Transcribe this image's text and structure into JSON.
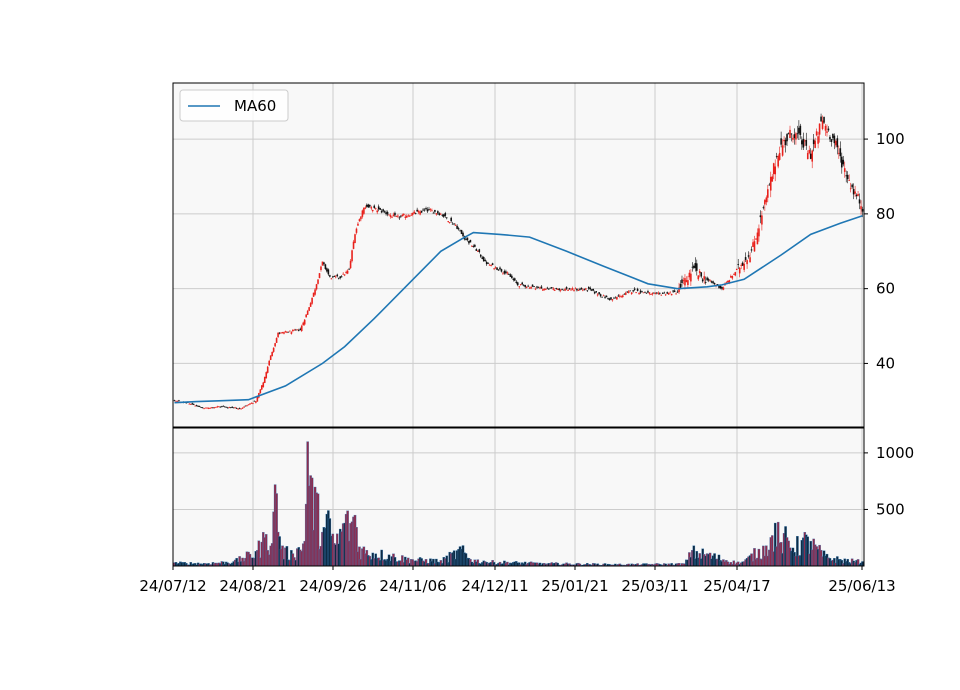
{
  "chart_data": {
    "type": "candlestick",
    "grid": true,
    "legend": {
      "position": "top-left",
      "entries": [
        "MA60"
      ]
    },
    "colors": {
      "up": "#e8211c",
      "down": "#111111",
      "ma60": "#1f77b4",
      "vol_up": "#8b2c4f",
      "vol_down": "#0d2b45",
      "vol_edge": "#3b7fb8",
      "panel_bg": "#f8f8f8",
      "grid": "#cccccc"
    },
    "x_tick_labels": [
      "24/07/12",
      "24/08/21",
      "24/09/26",
      "24/11/06",
      "24/12/11",
      "25/01/21",
      "25/03/11",
      "25/04/17",
      "25/06/13"
    ],
    "price_panel": {
      "ylim": [
        23,
        115
      ],
      "yticks": [
        40,
        60,
        80,
        100
      ],
      "series": [
        {
          "name": "MA60",
          "type": "line",
          "points": [
            [
              0,
              29.5
            ],
            [
              15,
              29.8
            ],
            [
              30,
              30
            ],
            [
              50,
              30.3
            ],
            [
              75,
              34
            ],
            [
              100,
              40
            ],
            [
              115,
              44.5
            ],
            [
              135,
              52
            ],
            [
              160,
              62
            ],
            [
              180,
              70
            ],
            [
              195,
              73.5
            ],
            [
              202,
              75
            ],
            [
              220,
              74.5
            ],
            [
              240,
              73.8
            ],
            [
              265,
              70
            ],
            [
              290,
              66
            ],
            [
              320,
              61.3
            ],
            [
              340,
              60
            ],
            [
              360,
              60.5
            ],
            [
              370,
              61
            ],
            [
              385,
              62.5
            ],
            [
              410,
              69
            ],
            [
              430,
              74.5
            ],
            [
              450,
              77.5
            ],
            [
              465,
              79.5
            ]
          ]
        }
      ],
      "candles_anchors": [
        [
          0,
          30
        ],
        [
          8,
          29.5
        ],
        [
          20,
          28
        ],
        [
          30,
          28.5
        ],
        [
          45,
          28
        ],
        [
          55,
          30
        ],
        [
          60,
          35
        ],
        [
          65,
          42
        ],
        [
          70,
          48
        ],
        [
          85,
          49
        ],
        [
          90,
          54
        ],
        [
          95,
          60
        ],
        [
          100,
          67
        ],
        [
          105,
          63
        ],
        [
          112,
          63
        ],
        [
          118,
          65
        ],
        [
          122,
          75
        ],
        [
          128,
          82
        ],
        [
          138,
          81
        ],
        [
          150,
          79
        ],
        [
          160,
          80
        ],
        [
          172,
          81
        ],
        [
          180,
          80
        ],
        [
          190,
          77
        ],
        [
          195,
          74
        ],
        [
          205,
          70
        ],
        [
          210,
          67
        ],
        [
          225,
          64
        ],
        [
          232,
          61
        ],
        [
          250,
          60
        ],
        [
          280,
          59.7
        ],
        [
          295,
          57
        ],
        [
          310,
          59.5
        ],
        [
          325,
          58.5
        ],
        [
          340,
          59
        ],
        [
          350,
          65
        ],
        [
          357,
          63
        ],
        [
          370,
          60
        ],
        [
          380,
          65
        ],
        [
          390,
          70
        ],
        [
          400,
          84
        ],
        [
          408,
          97
        ],
        [
          418,
          102
        ],
        [
          430,
          96
        ],
        [
          438,
          105
        ],
        [
          445,
          100
        ],
        [
          452,
          93
        ],
        [
          458,
          87
        ],
        [
          465,
          82
        ]
      ]
    },
    "volume_panel": {
      "ylim": [
        0,
        1220
      ],
      "yticks": [
        500,
        1000
      ],
      "anchors": [
        [
          0,
          30
        ],
        [
          20,
          25
        ],
        [
          40,
          40
        ],
        [
          55,
          130
        ],
        [
          62,
          280
        ],
        [
          66,
          200
        ],
        [
          68,
          720
        ],
        [
          72,
          150
        ],
        [
          80,
          110
        ],
        [
          88,
          220
        ],
        [
          90,
          1100
        ],
        [
          92,
          800
        ],
        [
          100,
          300
        ],
        [
          105,
          420
        ],
        [
          108,
          200
        ],
        [
          115,
          380
        ],
        [
          122,
          450
        ],
        [
          125,
          170
        ],
        [
          130,
          140
        ],
        [
          145,
          100
        ],
        [
          160,
          60
        ],
        [
          180,
          50
        ],
        [
          194,
          150
        ],
        [
          200,
          60
        ],
        [
          210,
          40
        ],
        [
          250,
          25
        ],
        [
          300,
          15
        ],
        [
          345,
          20
        ],
        [
          350,
          140
        ],
        [
          360,
          110
        ],
        [
          380,
          30
        ],
        [
          385,
          40
        ],
        [
          395,
          150
        ],
        [
          400,
          180
        ],
        [
          404,
          270
        ],
        [
          406,
          380
        ],
        [
          410,
          210
        ],
        [
          412,
          290
        ],
        [
          418,
          160
        ],
        [
          425,
          250
        ],
        [
          430,
          220
        ],
        [
          440,
          90
        ],
        [
          450,
          60
        ],
        [
          465,
          40
        ]
      ]
    },
    "n_days": 466
  }
}
